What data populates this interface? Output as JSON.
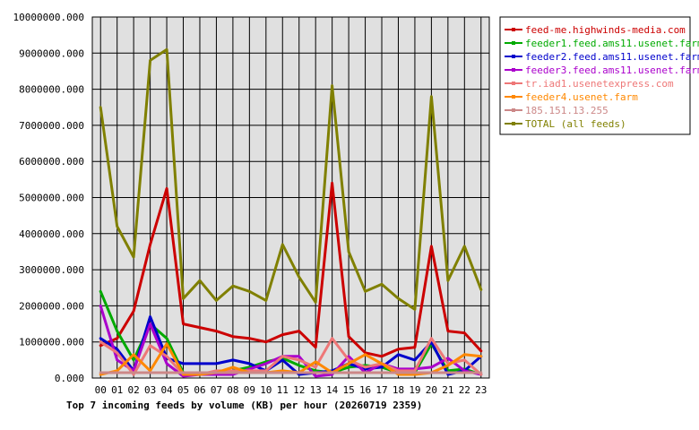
{
  "chart_data": {
    "type": "line",
    "title": "Top 7 incoming feeds by volume (KB) per hour (20260719 2359)",
    "xlabel": "",
    "ylabel": "",
    "ylim": [
      0,
      10000000
    ],
    "yticks": [
      "0.000",
      "1000000.000",
      "2000000.000",
      "3000000.000",
      "4000000.000",
      "5000000.000",
      "6000000.000",
      "7000000.000",
      "8000000.000",
      "9000000.000",
      "10000000.000"
    ],
    "grid": true,
    "legend": "top-right",
    "categories": [
      "00",
      "01",
      "02",
      "03",
      "04",
      "05",
      "06",
      "07",
      "08",
      "09",
      "10",
      "11",
      "12",
      "13",
      "14",
      "15",
      "16",
      "17",
      "18",
      "19",
      "20",
      "21",
      "22",
      "23"
    ],
    "series": [
      {
        "name": "feed-me.highwinds-media.com",
        "color": "#cc0000",
        "values": [
          900000,
          1100000,
          1850000,
          3700000,
          5250000,
          1500000,
          1400000,
          1300000,
          1150000,
          1100000,
          1000000,
          1200000,
          1300000,
          850000,
          5400000,
          1150000,
          700000,
          600000,
          800000,
          850000,
          3650000,
          1300000,
          1250000,
          750000
        ]
      },
      {
        "name": "feeder1.feed.ams11.usenet.farm",
        "color": "#00aa00",
        "values": [
          2400000,
          1300000,
          500000,
          1500000,
          1100000,
          150000,
          150000,
          150000,
          200000,
          300000,
          450000,
          550000,
          350000,
          200000,
          150000,
          300000,
          350000,
          300000,
          150000,
          150000,
          950000,
          200000,
          250000,
          100000
        ]
      },
      {
        "name": "feeder2.feed.ams11.usenet.farm",
        "color": "#0000cc",
        "values": [
          1100000,
          800000,
          200000,
          1700000,
          550000,
          400000,
          400000,
          400000,
          500000,
          400000,
          200000,
          500000,
          100000,
          150000,
          200000,
          400000,
          250000,
          300000,
          650000,
          500000,
          1000000,
          100000,
          200000,
          600000
        ]
      },
      {
        "name": "feeder3.feed.ams11.usenet.farm",
        "color": "#aa00cc",
        "values": [
          2000000,
          500000,
          200000,
          1500000,
          400000,
          50000,
          100000,
          100000,
          100000,
          250000,
          400000,
          600000,
          600000,
          50000,
          100000,
          600000,
          150000,
          400000,
          250000,
          250000,
          300000,
          550000,
          200000,
          100000
        ]
      },
      {
        "name": "tr.iad1.usenetexpress.com",
        "color": "#ee7777",
        "values": [
          1000000,
          700000,
          100000,
          900000,
          600000,
          100000,
          100000,
          200000,
          200000,
          200000,
          200000,
          600000,
          500000,
          300000,
          1100000,
          500000,
          300000,
          400000,
          200000,
          200000,
          1100000,
          400000,
          500000,
          100000
        ]
      },
      {
        "name": "feeder4.usenet.farm",
        "color": "#ff8800",
        "values": [
          100000,
          200000,
          650000,
          200000,
          950000,
          100000,
          100000,
          150000,
          300000,
          150000,
          150000,
          200000,
          150000,
          450000,
          150000,
          400000,
          650000,
          400000,
          100000,
          100000,
          150000,
          350000,
          650000,
          600000
        ]
      },
      {
        "name": "185.151.13.255",
        "color": "#cc8888",
        "values": [
          150000,
          150000,
          150000,
          150000,
          150000,
          150000,
          150000,
          150000,
          150000,
          150000,
          150000,
          150000,
          150000,
          150000,
          150000,
          150000,
          150000,
          150000,
          150000,
          150000,
          150000,
          150000,
          150000,
          150000
        ]
      },
      {
        "name": "TOTAL (all feeds)",
        "color": "#808000",
        "values": [
          7500000,
          4200000,
          3350000,
          8800000,
          9100000,
          2200000,
          2700000,
          2150000,
          2550000,
          2400000,
          2150000,
          3700000,
          2800000,
          2100000,
          8100000,
          3500000,
          2400000,
          2600000,
          2200000,
          1900000,
          7800000,
          2700000,
          3650000,
          2450000
        ]
      }
    ]
  }
}
